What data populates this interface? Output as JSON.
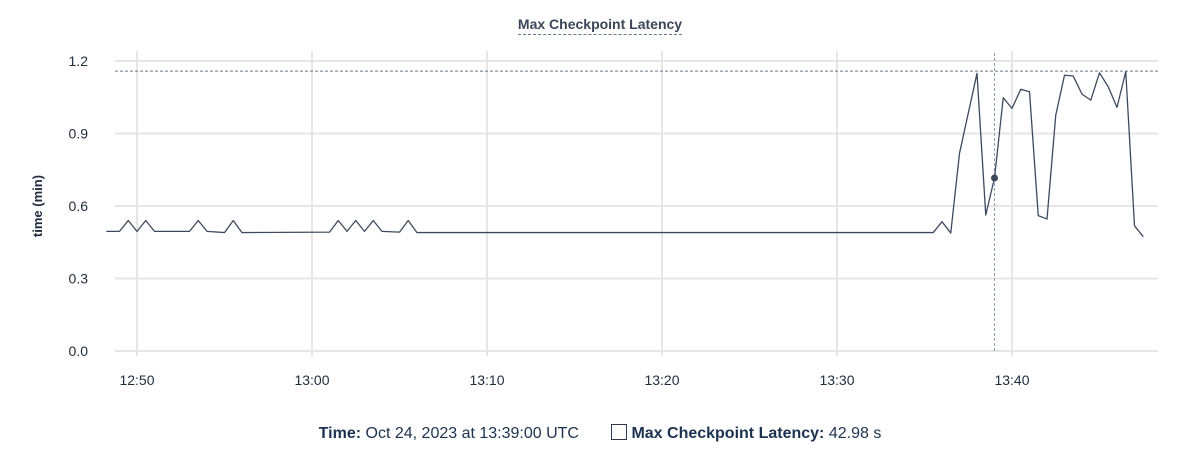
{
  "chart_data": {
    "type": "line",
    "title": "Max Checkpoint Latency",
    "xlabel": "",
    "ylabel": "time (min)",
    "ylim": [
      0,
      1.2
    ],
    "yticks": [
      "0.0",
      "0.3",
      "0.6",
      "0.9",
      "1.2"
    ],
    "xticks": [
      "12:50",
      "13:00",
      "13:10",
      "13:20",
      "13:30",
      "13:40"
    ],
    "xlim": [
      "12:48:15",
      "13:48:00"
    ],
    "grid": true,
    "line_color": "#3d4a5e",
    "max_value_line": 1.156,
    "hover_time": "13:39:00",
    "series": [
      {
        "points": [
          [
            "12:48:15",
            0.495
          ],
          [
            "12:49:00",
            0.495
          ],
          [
            "12:49:30",
            0.54
          ],
          [
            "12:50:00",
            0.495
          ],
          [
            "12:50:30",
            0.54
          ],
          [
            "12:51:00",
            0.495
          ],
          [
            "12:53:00",
            0.495
          ],
          [
            "12:53:30",
            0.54
          ],
          [
            "12:54:00",
            0.495
          ],
          [
            "12:55:00",
            0.49
          ],
          [
            "12:55:30",
            0.54
          ],
          [
            "12:56:00",
            0.49
          ],
          [
            "13:01:00",
            0.492
          ],
          [
            "13:01:30",
            0.54
          ],
          [
            "13:02:00",
            0.495
          ],
          [
            "13:02:30",
            0.54
          ],
          [
            "13:03:00",
            0.495
          ],
          [
            "13:03:30",
            0.54
          ],
          [
            "13:04:00",
            0.495
          ],
          [
            "13:05:00",
            0.492
          ],
          [
            "13:05:30",
            0.54
          ],
          [
            "13:06:00",
            0.49
          ],
          [
            "13:07:00",
            0.49
          ],
          [
            "13:35:30",
            0.49
          ],
          [
            "13:36:00",
            0.535
          ],
          [
            "13:36:30",
            0.488
          ],
          [
            "13:37:00",
            0.818
          ],
          [
            "13:38:00",
            1.149
          ],
          [
            "13:38:30",
            0.563
          ],
          [
            "13:39:00",
            0.716
          ],
          [
            "13:39:30",
            1.048
          ],
          [
            "13:40:00",
            1.004
          ],
          [
            "13:40:30",
            1.083
          ],
          [
            "13:41:00",
            1.073
          ],
          [
            "13:41:30",
            0.56
          ],
          [
            "13:42:00",
            0.546
          ],
          [
            "13:42:30",
            0.976
          ],
          [
            "13:43:00",
            1.141
          ],
          [
            "13:43:30",
            1.138
          ],
          [
            "13:44:00",
            1.063
          ],
          [
            "13:44:30",
            1.038
          ],
          [
            "13:45:00",
            1.151
          ],
          [
            "13:45:30",
            1.093
          ],
          [
            "13:46:00",
            1.008
          ],
          [
            "13:46:30",
            1.156
          ],
          [
            "13:47:00",
            0.518
          ],
          [
            "13:47:30",
            0.473
          ]
        ]
      }
    ]
  },
  "legend": {
    "time_label": "Time:",
    "time_value": "Oct 24, 2023 at 13:39:00 UTC",
    "series_label": "Max Checkpoint Latency:",
    "series_value": "42.98 s"
  }
}
